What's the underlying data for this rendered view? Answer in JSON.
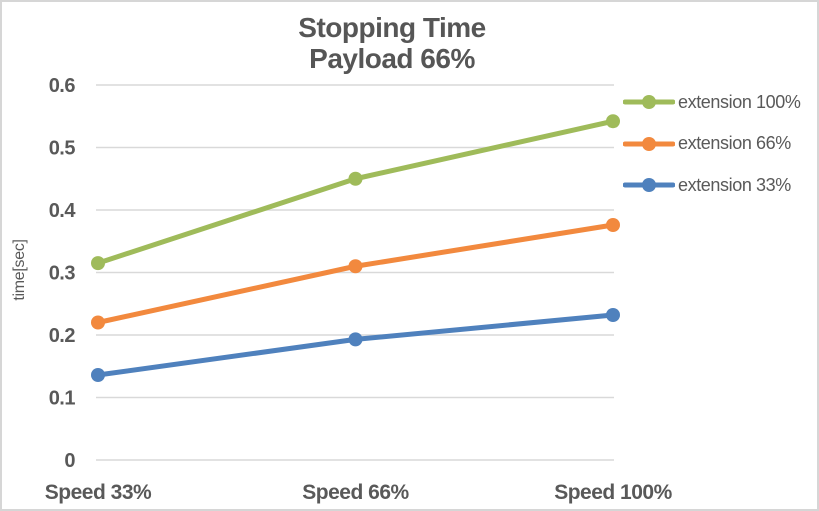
{
  "chart": {
    "title": "Stopping Time",
    "subtitle": "Payload 66%"
  },
  "chart_data": {
    "type": "line",
    "title": "Stopping Time",
    "subtitle": "Payload 66%",
    "categories": [
      "Speed 33%",
      "Speed 66%",
      "Speed 100%"
    ],
    "series": [
      {
        "name": "extension 100%",
        "color": "#9fbb5a",
        "values": [
          0.315,
          0.45,
          0.542
        ]
      },
      {
        "name": "extension 66%",
        "color": "#f2893e",
        "values": [
          0.22,
          0.31,
          0.376
        ]
      },
      {
        "name": "extension 33%",
        "color": "#4f81bd",
        "values": [
          0.136,
          0.193,
          0.232
        ]
      }
    ],
    "xlabel": "",
    "ylabel": "time[sec]",
    "ylim": [
      0,
      0.6
    ],
    "ytick_step": 0.1,
    "ytick_labels": [
      "0",
      "0.1",
      "0.2",
      "0.3",
      "0.4",
      "0.5",
      "0.6"
    ],
    "grid": "horizontal-only",
    "legend_position": "right",
    "marker": "circle",
    "text_color": "#595959",
    "grid_color": "#d9d9d9",
    "background_color": "#ffffff",
    "border_color": "#d6d6d6"
  }
}
